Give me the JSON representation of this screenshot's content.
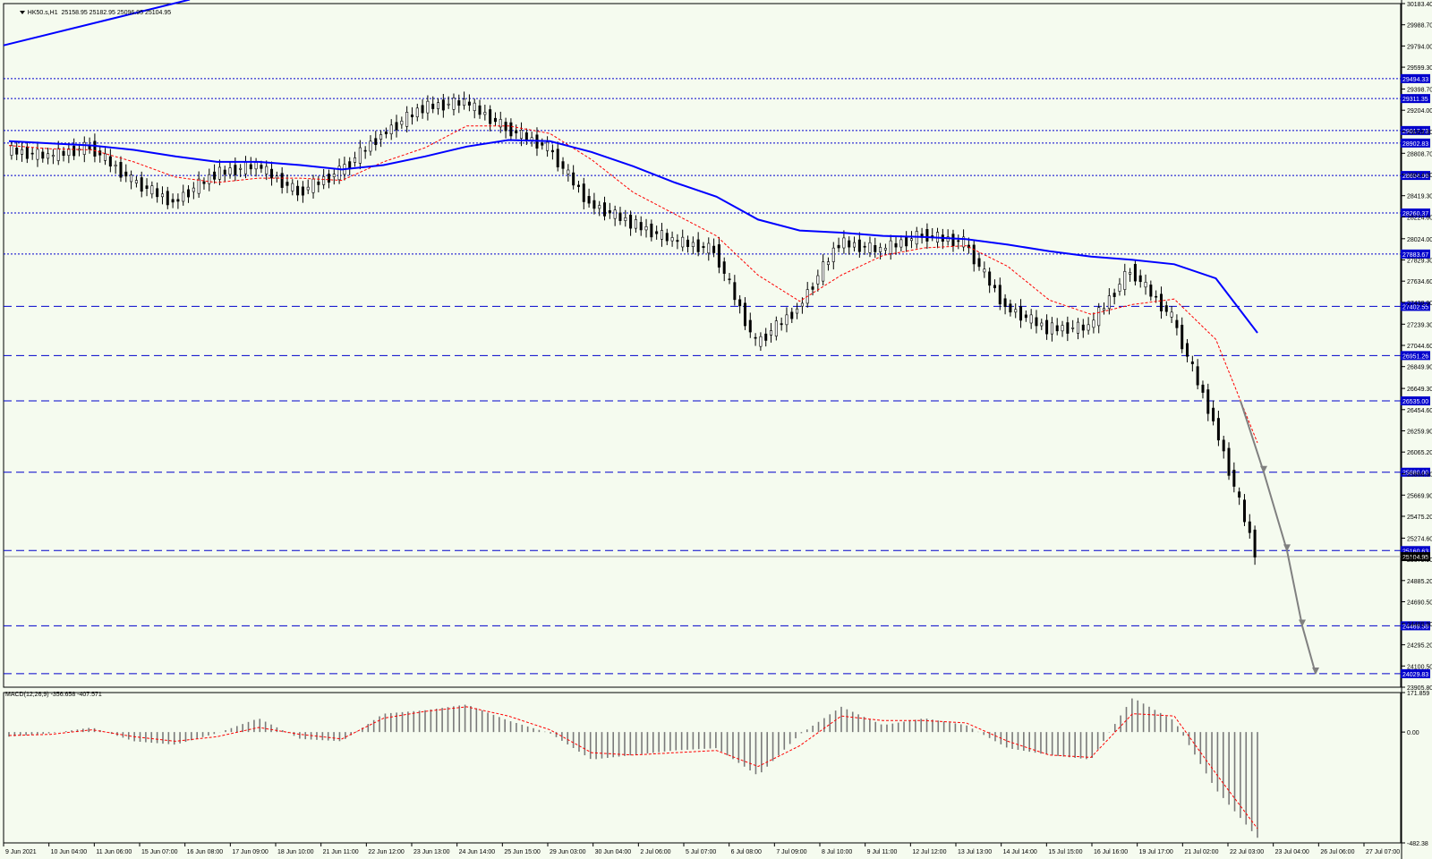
{
  "header": {
    "symbol": "HK50.s,H1",
    "ohlc": "25158.95 25182.95 25096.95 25104.95"
  },
  "macd": {
    "label": "MACD(12,26,9) -356.658 -407.571",
    "axis": {
      "max": 171.859,
      "zero": 0.0,
      "min": -482.38
    },
    "tick_labels": [
      "171.859",
      "0.00",
      "-482.38"
    ]
  },
  "price_axis": {
    "min": 23905.8,
    "max": 30183.4,
    "ticks": [
      "30183.40",
      "29988.70",
      "29794.00",
      "29599.30",
      "29398.70",
      "29204.00",
      "29009.30",
      "28808.70",
      "28614.00",
      "28419.30",
      "28224.60",
      "28024.00",
      "27829.30",
      "27634.60",
      "27439.90",
      "27239.30",
      "27044.60",
      "26849.90",
      "26649.30",
      "26454.60",
      "26259.90",
      "26065.20",
      "25864.60",
      "25669.90",
      "25475.20",
      "25274.60",
      "25079.90",
      "24885.20",
      "24690.50",
      "24489.90",
      "24295.20",
      "24100.50",
      "23905.80"
    ]
  },
  "level_lines": [
    {
      "label": "29494.33",
      "style": "dotted"
    },
    {
      "label": "29311.35",
      "style": "dotted"
    },
    {
      "label": "29017.73",
      "style": "dotted"
    },
    {
      "label": "28902.83",
      "style": "dotted"
    },
    {
      "label": "28604.96",
      "style": "dotted"
    },
    {
      "label": "28260.37",
      "style": "dotted"
    },
    {
      "label": "27883.67",
      "style": "dotted"
    },
    {
      "label": "27402.55",
      "style": "dashed"
    },
    {
      "label": "26951.26",
      "style": "dashed"
    },
    {
      "label": "26535.00",
      "style": "dashed"
    },
    {
      "label": "25880.00",
      "style": "dashed"
    },
    {
      "label": "25160.63",
      "style": "dashed"
    },
    {
      "label": "24469.58",
      "style": "dashed"
    },
    {
      "label": "24029.83",
      "style": "dashed"
    }
  ],
  "current_price": "25104.95",
  "time_axis": [
    "9 Jun 2021",
    "10 Jun 04:00",
    "11 Jun 06:00",
    "15 Jun 07:00",
    "16 Jun 08:00",
    "17 Jun 09:00",
    "18 Jun 10:00",
    "21 Jun 11:00",
    "22 Jun 12:00",
    "23 Jun 13:00",
    "24 Jun 14:00",
    "25 Jun 15:00",
    "29 Jun 03:00",
    "30 Jun 04:00",
    "2 Jul 06:00",
    "5 Jul 07:00",
    "6 Jul 08:00",
    "7 Jul 09:00",
    "8 Jul 10:00",
    "9 Jul 11:00",
    "12 Jul 12:00",
    "13 Jul 13:00",
    "14 Jul 14:00",
    "15 Jul 15:00",
    "16 Jul 16:00",
    "19 Jul 17:00",
    "21 Jul 02:00",
    "22 Jul 03:00",
    "23 Jul 04:00",
    "26 Jul 06:00",
    "27 Jul 07:00"
  ],
  "chart_data": {
    "type": "line",
    "title": "HK50.s,H1",
    "subtitle": "25158.95 25182.95 25096.95 25104.95",
    "ylim": [
      23905.8,
      30183.4
    ],
    "x": [
      "9 Jun 2021",
      "10 Jun 04:00",
      "11 Jun 06:00",
      "15 Jun 07:00",
      "16 Jun 08:00",
      "17 Jun 09:00",
      "18 Jun 10:00",
      "21 Jun 11:00",
      "22 Jun 12:00",
      "23 Jun 13:00",
      "24 Jun 14:00",
      "25 Jun 15:00",
      "29 Jun 03:00",
      "30 Jun 04:00",
      "2 Jul 06:00",
      "5 Jul 07:00",
      "6 Jul 08:00",
      "7 Jul 09:00",
      "8 Jul 10:00",
      "9 Jul 11:00",
      "12 Jul 12:00",
      "13 Jul 13:00",
      "14 Jul 14:00",
      "15 Jul 15:00",
      "16 Jul 16:00",
      "19 Jul 17:00",
      "21 Jul 02:00",
      "22 Jul 03:00",
      "23 Jul 04:00",
      "26 Jul 06:00",
      "27 Jul 07:00"
    ],
    "series": [
      {
        "color": "#000000",
        "values": [
          28840,
          28780,
          28870,
          28560,
          28360,
          28620,
          28700,
          28450,
          28640,
          28980,
          29230,
          29280,
          29040,
          28860,
          28350,
          28170,
          28010,
          27920,
          27060,
          27380,
          27990,
          27920,
          28060,
          27990,
          27400,
          27200,
          27210,
          27740,
          27300,
          26350,
          25150
        ]
      },
      {
        "color": "#ff0000",
        "values": [
          28880,
          28850,
          28840,
          28730,
          28590,
          28540,
          28580,
          28580,
          28560,
          28730,
          28860,
          29060,
          29060,
          28990,
          28750,
          28450,
          28250,
          28050,
          27690,
          27450,
          27690,
          27870,
          27940,
          27960,
          27770,
          27460,
          27330,
          27420,
          27470,
          27100,
          26150
        ]
      },
      {
        "color": "#0000ff",
        "values": [
          28920,
          28900,
          28880,
          28840,
          28780,
          28730,
          28730,
          28700,
          28660,
          28700,
          28780,
          28870,
          28930,
          28920,
          28820,
          28690,
          28540,
          28410,
          28200,
          28100,
          28080,
          28050,
          28040,
          28020,
          27970,
          27910,
          27860,
          27830,
          27790,
          27660,
          27160
        ]
      }
    ],
    "macd": {
      "type": "bar",
      "zero": 0,
      "ylim": [
        -482.38,
        171.859
      ],
      "signal_color": "#ff0000",
      "histogram": [
        -20,
        -5,
        20,
        -40,
        -55,
        -5,
        60,
        -30,
        -40,
        80,
        95,
        120,
        50,
        -5,
        -120,
        -100,
        -80,
        -70,
        -190,
        -10,
        110,
        30,
        60,
        30,
        -70,
        -100,
        -120,
        150,
        50,
        -250,
        -460
      ],
      "signal": [
        -15,
        -10,
        10,
        -20,
        -40,
        -20,
        20,
        -10,
        -30,
        60,
        90,
        110,
        70,
        10,
        -90,
        -100,
        -90,
        -80,
        -150,
        -60,
        70,
        50,
        50,
        40,
        -40,
        -100,
        -110,
        80,
        70,
        -180,
        -420
      ]
    }
  }
}
